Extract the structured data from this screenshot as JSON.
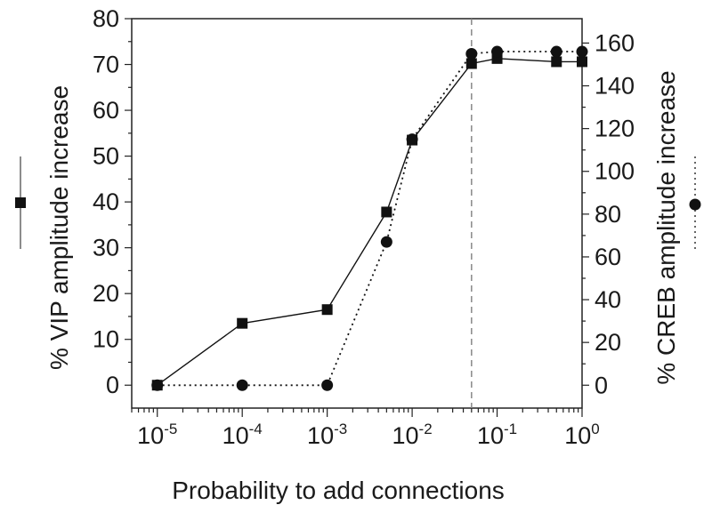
{
  "chart_data": {
    "type": "line",
    "title": "",
    "xlabel": "Probability to add connections",
    "x_scale": "log",
    "xlim": [
      5e-06,
      1
    ],
    "x_ticks": [
      1e-05,
      0.0001,
      0.001,
      0.01,
      0.1,
      1
    ],
    "x_tick_labels": [
      {
        "base": "10",
        "exp": "-5"
      },
      {
        "base": "10",
        "exp": "-4"
      },
      {
        "base": "10",
        "exp": "-3"
      },
      {
        "base": "10",
        "exp": "-2"
      },
      {
        "base": "10",
        "exp": "-1"
      },
      {
        "base": "10",
        "exp": "0"
      }
    ],
    "left_axis": {
      "label": "% VIP amplitude increase",
      "ylim": [
        -5,
        80
      ],
      "ticks": [
        0,
        10,
        20,
        30,
        40,
        50,
        60,
        70,
        80
      ]
    },
    "right_axis": {
      "label": "% CREB amplitude increase",
      "ylim": [
        -10.7,
        171.4
      ],
      "ticks": [
        0,
        20,
        40,
        60,
        80,
        100,
        120,
        140,
        160
      ]
    },
    "series": [
      {
        "axis": "left",
        "marker": "square",
        "line_style": "solid",
        "color": "#111111",
        "x": [
          1e-05,
          0.0001,
          0.001,
          0.005,
          0.01,
          0.05,
          0.1,
          0.5,
          1
        ],
        "y": [
          0,
          13.5,
          16.5,
          37.8,
          53.5,
          70.2,
          71.3,
          70.6,
          70.6
        ]
      },
      {
        "axis": "right",
        "marker": "circle",
        "line_style": "dotted",
        "color": "#111111",
        "x": [
          1e-05,
          0.0001,
          0.001,
          0.005,
          0.01,
          0.05,
          0.1,
          0.5,
          1
        ],
        "y": [
          0,
          0,
          0,
          67,
          115,
          155,
          156,
          156,
          156
        ]
      }
    ],
    "reference_lines": [
      {
        "orientation": "vertical",
        "x": 0.05,
        "style": "dashed",
        "color": "#888888"
      }
    ],
    "grid": false
  }
}
